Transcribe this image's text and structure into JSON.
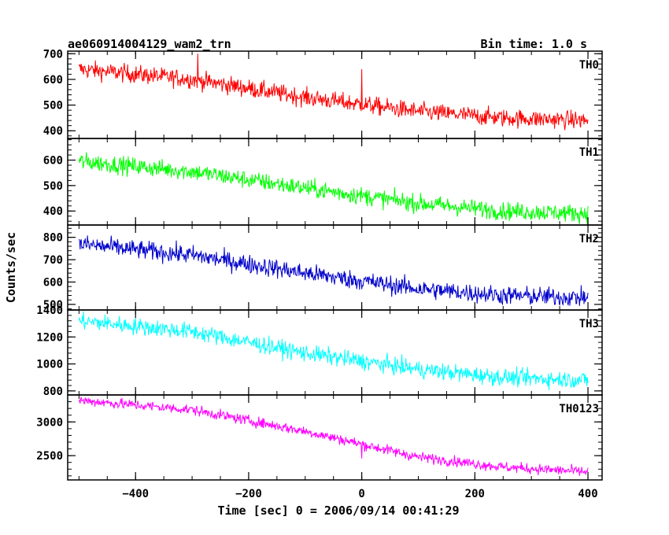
{
  "header": {
    "title": "ae060914004129_wam2_trn",
    "bin_time": "Bin time: 1.0 s"
  },
  "chart_data": {
    "type": "line",
    "xlabel": "Time [sec] 0 = 2006/09/14 00:41:29",
    "ylabel": "Counts/sec",
    "xlim": [
      -520,
      425
    ],
    "x_ticks": [
      -400,
      -200,
      0,
      200,
      400
    ],
    "x_range_data": [
      -500,
      400
    ],
    "panels": [
      {
        "name": "TH0",
        "color": "#ff0000",
        "ylim": [
          370,
          710
        ],
        "y_ticks": [
          400,
          500,
          600,
          700
        ],
        "trend": [
          [
            -500,
            640
          ],
          [
            -300,
            600
          ],
          [
            -100,
            530
          ],
          [
            100,
            475
          ],
          [
            250,
            450
          ],
          [
            400,
            440
          ]
        ],
        "noise": 25,
        "spikes": [
          [
            -290,
            700
          ],
          [
            0,
            640
          ]
        ]
      },
      {
        "name": "TH1",
        "color": "#00ff00",
        "ylim": [
          345,
          685
        ],
        "y_ticks": [
          400,
          500,
          600
        ],
        "trend": [
          [
            -500,
            595
          ],
          [
            -300,
            555
          ],
          [
            -100,
            490
          ],
          [
            100,
            430
          ],
          [
            250,
            400
          ],
          [
            400,
            390
          ]
        ],
        "noise": 25,
        "spikes": []
      },
      {
        "name": "TH2",
        "color": "#0000cc",
        "ylim": [
          475,
          855
        ],
        "y_ticks": [
          500,
          600,
          700,
          800
        ],
        "trend": [
          [
            -500,
            770
          ],
          [
            -300,
            720
          ],
          [
            -100,
            640
          ],
          [
            100,
            570
          ],
          [
            250,
            540
          ],
          [
            400,
            530
          ]
        ],
        "noise": 30,
        "spikes": []
      },
      {
        "name": "TH3",
        "color": "#00ffff",
        "ylim": [
          770,
          1400
        ],
        "y_ticks": [
          800,
          1000,
          1200,
          1400
        ],
        "trend": [
          [
            -500,
            1320
          ],
          [
            -300,
            1240
          ],
          [
            -100,
            1080
          ],
          [
            100,
            960
          ],
          [
            250,
            900
          ],
          [
            400,
            880
          ]
        ],
        "noise": 45,
        "spikes": []
      },
      {
        "name": "TH0123",
        "color": "#ff00ff",
        "ylim": [
          2140,
          3400
        ],
        "y_ticks": [
          2500,
          3000
        ],
        "trend": [
          [
            -500,
            3320
          ],
          [
            -300,
            3180
          ],
          [
            -100,
            2860
          ],
          [
            100,
            2480
          ],
          [
            250,
            2330
          ],
          [
            400,
            2260
          ]
        ],
        "noise": 55,
        "spikes": [
          [
            0,
            2460
          ]
        ]
      }
    ]
  }
}
